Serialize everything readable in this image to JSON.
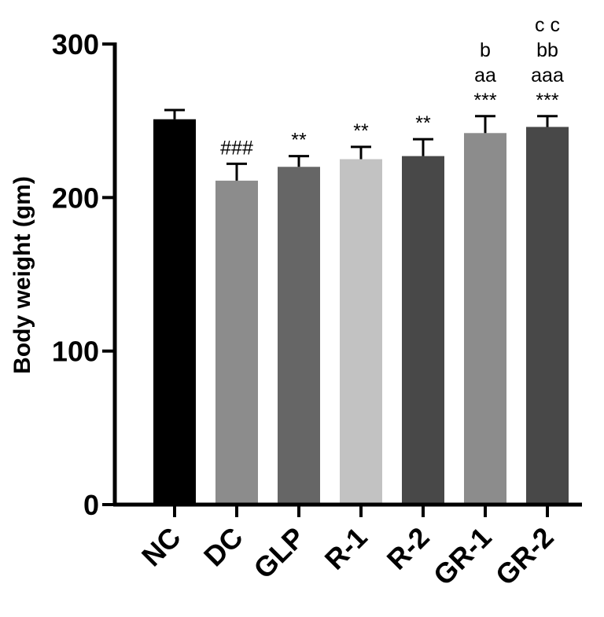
{
  "chart_data": {
    "type": "bar",
    "title": "",
    "xlabel": "",
    "ylabel": "Body weight (gm)",
    "ylim": [
      0,
      300
    ],
    "yticks": [
      0,
      100,
      200,
      300
    ],
    "grid": false,
    "categories": [
      "NC",
      "DC",
      "GLP",
      "R-1",
      "R-2",
      "GR-1",
      "GR-2"
    ],
    "values": [
      251,
      211,
      220,
      225,
      227,
      242,
      246
    ],
    "errors": [
      6,
      11,
      7,
      8,
      11,
      11,
      7
    ],
    "colors": [
      "#000000",
      "#8c8c8c",
      "#666666",
      "#c2c2c2",
      "#484848",
      "#8c8c8c",
      "#484848"
    ],
    "annotations": [
      [],
      [
        "###"
      ],
      [
        "**"
      ],
      [
        "**"
      ],
      [
        "**"
      ],
      [
        "***",
        "aa",
        "b"
      ],
      [
        "***",
        "aaa",
        "bb",
        "c c"
      ]
    ]
  }
}
